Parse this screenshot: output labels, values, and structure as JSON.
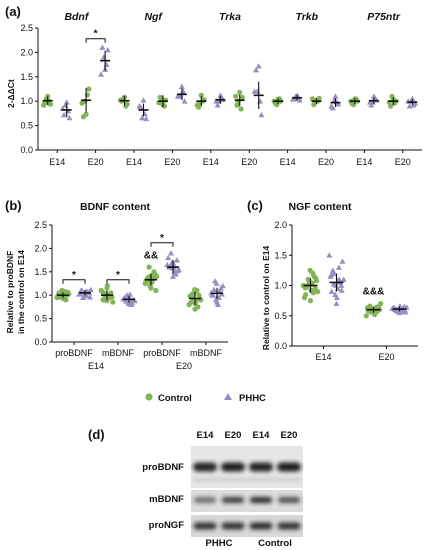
{
  "colors": {
    "control": "#82b356",
    "phhc": "#9a8cc4",
    "mean": "#111111"
  },
  "legend": {
    "control": "Control",
    "phhc": "PHHC"
  },
  "chart_data": [
    {
      "panel": "(a)",
      "type": "scatter",
      "ylabel": "2-ΔΔCt",
      "ylim": [
        0,
        2.5
      ],
      "yticks": [
        "0.0",
        "0.5",
        "1.0",
        "1.5",
        "2.0",
        "2.5"
      ],
      "genes": [
        "Bdnf",
        "Ngf",
        "Trka",
        "Trkb",
        "P75ntr"
      ],
      "ages": [
        "E14",
        "E20",
        "E14",
        "E20",
        "E14",
        "E20",
        "E14",
        "E20",
        "E14",
        "E20"
      ],
      "annotation": {
        "text": "*",
        "gene": 0,
        "age": 1
      },
      "series": [
        {
          "name": "Control",
          "mean": [
            1.01,
            1.02,
            1.01,
            1.0,
            1.0,
            1.02,
            1.0,
            1.0,
            1.0,
            1.0
          ],
          "sd": [
            0.09,
            0.25,
            0.1,
            0.12,
            0.1,
            0.12,
            0.06,
            0.06,
            0.06,
            0.08
          ],
          "points": [
            [
              1.1,
              0.97,
              0.94,
              1.05,
              1.0,
              0.92
            ],
            [
              0.73,
              0.68,
              1.25,
              1.0,
              1.13,
              0.96
            ],
            [
              1.08,
              1.0,
              0.94,
              1.05,
              0.9,
              1.02
            ],
            [
              0.93,
              1.08,
              1.02,
              1.06,
              0.9,
              0.97
            ],
            [
              1.12,
              0.88,
              1.03,
              0.96,
              1.0,
              0.92
            ],
            [
              1.18,
              0.92,
              1.08,
              1.0,
              0.84,
              1.1
            ],
            [
              1.04,
              0.96,
              1.0,
              0.93,
              1.05,
              1.0
            ],
            [
              1.02,
              0.93,
              1.06,
              0.98,
              1.0,
              1.05
            ],
            [
              1.05,
              0.95,
              1.0,
              0.93,
              1.04,
              1.0
            ],
            [
              1.04,
              0.9,
              1.0,
              1.1,
              0.96,
              0.98
            ]
          ]
        },
        {
          "name": "PHHC",
          "mean": [
            0.82,
            1.83,
            0.82,
            1.14,
            1.03,
            1.12,
            1.07,
            0.97,
            1.01,
            0.98
          ],
          "sd": [
            0.14,
            0.2,
            0.13,
            0.12,
            0.08,
            0.28,
            0.06,
            0.09,
            0.07,
            0.06
          ],
          "points": [
            [
              0.98,
              0.72,
              0.66,
              0.92,
              0.8,
              0.85
            ],
            [
              1.65,
              2.1,
              2.05,
              1.9,
              1.75,
              1.55
            ],
            [
              1.02,
              0.88,
              0.64,
              0.66,
              0.74,
              0.9
            ],
            [
              1.3,
              1.1,
              1.0,
              1.12,
              1.2,
              1.1
            ],
            [
              1.12,
              0.92,
              1.03,
              1.0,
              1.08,
              1.0
            ],
            [
              1.72,
              1.64,
              0.72,
              1.2,
              1.0,
              1.2
            ],
            [
              1.12,
              1.05,
              1.02,
              1.1,
              1.08,
              1.04
            ],
            [
              1.1,
              0.86,
              0.94,
              1.02,
              0.98,
              0.9
            ],
            [
              1.1,
              0.92,
              1.02,
              0.98,
              1.05,
              0.98
            ],
            [
              1.05,
              0.9,
              0.96,
              1.0,
              0.92,
              1.0
            ]
          ]
        }
      ]
    },
    {
      "panel": "(b)",
      "type": "scatter",
      "title": "BDNF content",
      "ylabel": [
        "Relative to proBDNF",
        "in the control on E14"
      ],
      "ylim": [
        0,
        2.5
      ],
      "yticks": [
        "0.0",
        "0.5",
        "1.0",
        "1.5",
        "2.0",
        "2.5"
      ],
      "categories": [
        "proBDNF",
        "mBDNF",
        "proBDNF",
        "mBDNF"
      ],
      "ages": [
        "E14",
        "E20"
      ],
      "annotations": [
        {
          "text": "*",
          "category": 0,
          "y": 1.33
        },
        {
          "text": "*",
          "category": 1,
          "y": 1.33
        },
        {
          "text": "*",
          "category": 2,
          "y": 2.12
        },
        {
          "text": "&&",
          "category": 2,
          "y": 1.78,
          "series": "Control"
        }
      ],
      "series": [
        {
          "name": "Control",
          "mean": [
            1.0,
            1.0,
            1.33,
            0.93
          ],
          "sd": [
            0.06,
            0.1,
            0.12,
            0.14
          ],
          "points": [
            [
              0.93,
              1.05,
              1.0,
              0.97,
              1.08,
              0.95,
              1.02,
              1.1,
              0.9,
              1.0,
              1.04,
              0.96,
              1.06,
              0.98,
              1.01
            ],
            [
              1.15,
              0.9,
              1.05,
              0.95,
              1.0,
              1.1,
              0.85,
              1.02,
              0.98,
              1.08,
              0.92,
              1.04,
              0.96,
              1.2,
              0.88
            ],
            [
              1.15,
              1.3,
              1.45,
              1.6,
              1.35,
              1.25,
              1.4,
              1.2,
              1.5,
              1.32,
              1.28,
              1.38,
              1.1,
              1.42,
              1.3
            ],
            [
              0.7,
              0.85,
              1.0,
              0.95,
              1.1,
              0.8,
              0.9,
              1.05,
              0.75,
              0.98,
              0.88,
              1.02,
              0.92,
              0.82,
              1.12
            ]
          ]
        },
        {
          "name": "PHHC",
          "mean": [
            1.05,
            0.91,
            1.6,
            1.04
          ],
          "sd": [
            0.05,
            0.07,
            0.15,
            0.12
          ],
          "points": [
            [
              1.0,
              1.1,
              1.05,
              0.95,
              1.08,
              1.02,
              1.12,
              0.98,
              1.06,
              1.04,
              1.0,
              1.1,
              0.96,
              1.08,
              1.03
            ],
            [
              0.85,
              0.95,
              0.9,
              1.0,
              0.8,
              0.92,
              0.88,
              0.97,
              0.83,
              0.93,
              1.02,
              0.87,
              0.9,
              0.95,
              0.82
            ],
            [
              1.4,
              1.6,
              1.75,
              1.9,
              1.5,
              1.65,
              1.55,
              1.7,
              1.45,
              1.8,
              1.6,
              1.62,
              1.52,
              1.68,
              1.58
            ],
            [
              0.85,
              1.0,
              1.15,
              1.3,
              0.95,
              1.05,
              1.2,
              0.9,
              1.1,
              1.0,
              0.8,
              1.12,
              1.02,
              0.96,
              1.25
            ]
          ]
        }
      ]
    },
    {
      "panel": "(c)",
      "type": "scatter",
      "title": "NGF content",
      "ylabel": "Relative to control on E14",
      "ylim": [
        0,
        2.0
      ],
      "yticks": [
        "0.0",
        "0.5",
        "1.0",
        "1.5",
        "2.0"
      ],
      "categories": [
        "E14",
        "E20"
      ],
      "annotation": {
        "text": "&&&",
        "category": 1,
        "y": 0.85
      },
      "series": [
        {
          "name": "Control",
          "mean": [
            1.0,
            0.6
          ],
          "sd": [
            0.12,
            0.05
          ],
          "points": [
            [
              0.75,
              0.85,
              0.95,
              1.1,
              1.2,
              1.0,
              0.9,
              1.05,
              1.15,
              0.8,
              1.02,
              0.98,
              1.08,
              0.92,
              1.25,
              0.88,
              1.0,
              1.12,
              0.96,
              1.04
            ],
            [
              0.55,
              0.6,
              0.65,
              0.58,
              0.62,
              0.5,
              0.7,
              0.6,
              0.57,
              0.63,
              0.52,
              0.66,
              0.6,
              0.59,
              0.61,
              0.64,
              0.56,
              0.62,
              0.58,
              0.6
            ]
          ]
        },
        {
          "name": "PHHC",
          "mean": [
            1.05,
            0.61
          ],
          "sd": [
            0.15,
            0.04
          ],
          "points": [
            [
              0.7,
              0.9,
              1.0,
              1.2,
              1.3,
              1.5,
              1.1,
              0.85,
              1.05,
              1.15,
              0.95,
              1.25,
              1.4,
              0.8,
              1.0,
              1.1,
              1.02,
              0.92,
              1.18,
              1.08
            ],
            [
              0.55,
              0.6,
              0.65,
              0.6,
              0.58,
              0.62,
              0.64,
              0.57,
              0.6,
              0.63,
              0.59,
              0.61,
              0.56,
              0.66,
              0.6,
              0.62,
              0.58,
              0.6,
              0.63,
              0.57
            ]
          ]
        }
      ]
    },
    {
      "panel": "(d)",
      "type": "blot",
      "lane_labels": [
        "E14",
        "E20",
        "E14",
        "E20"
      ],
      "group_labels": [
        "PHHC",
        "Control"
      ],
      "bands": [
        "proBDNF",
        "mBDNF",
        "proNGF"
      ]
    }
  ]
}
